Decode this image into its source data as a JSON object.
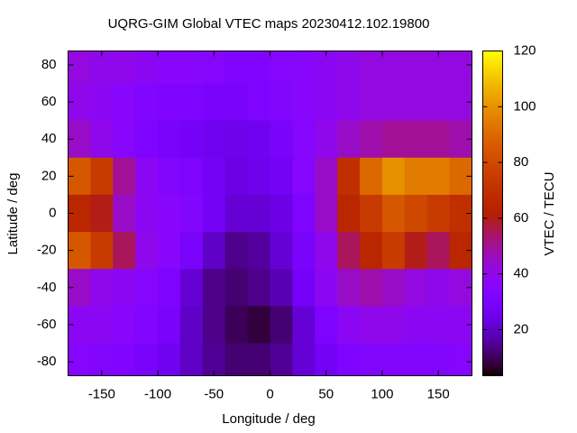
{
  "chart_data": {
    "type": "heatmap",
    "title": "UQRG-GIM Global VTEC maps 20230412.102.19800",
    "xlabel": "Longitude / deg",
    "ylabel": "Latitude / deg",
    "cblabel": "VTEC / TECU",
    "colormap": "gnuplot",
    "xlim": [
      -180,
      180
    ],
    "ylim": [
      -87.5,
      87.5
    ],
    "xticks": [
      -150,
      -100,
      -50,
      0,
      50,
      100,
      150
    ],
    "yticks": [
      -80,
      -60,
      -40,
      -20,
      0,
      20,
      40,
      60,
      80
    ],
    "cblim": [
      3.5,
      120
    ],
    "cbticks": [
      20,
      40,
      60,
      80,
      100,
      120
    ],
    "x": [
      -170,
      -150,
      -130,
      -110,
      -90,
      -70,
      -50,
      -30,
      -10,
      10,
      30,
      50,
      70,
      90,
      110,
      130,
      150,
      170
    ],
    "y": [
      80,
      60,
      40,
      20,
      0,
      -20,
      -40,
      -60,
      -80
    ],
    "z": [
      [
        42,
        40,
        40,
        38,
        36,
        36,
        35,
        33,
        33,
        35,
        36,
        38,
        40,
        42,
        42,
        42,
        42,
        42
      ],
      [
        40,
        38,
        36,
        34,
        32,
        32,
        30,
        30,
        32,
        34,
        36,
        38,
        40,
        42,
        42,
        42,
        42,
        42
      ],
      [
        45,
        40,
        36,
        32,
        30,
        28,
        26,
        25,
        26,
        30,
        35,
        40,
        45,
        48,
        50,
        50,
        50,
        48
      ],
      [
        85,
        75,
        50,
        38,
        34,
        32,
        28,
        24,
        25,
        28,
        35,
        45,
        70,
        90,
        100,
        95,
        95,
        90
      ],
      [
        65,
        60,
        45,
        38,
        36,
        34,
        28,
        22,
        22,
        24,
        32,
        45,
        65,
        75,
        85,
        80,
        75,
        70
      ],
      [
        85,
        75,
        55,
        40,
        36,
        30,
        20,
        14,
        16,
        22,
        30,
        40,
        55,
        65,
        75,
        60,
        55,
        65
      ],
      [
        45,
        40,
        38,
        35,
        32,
        22,
        14,
        12,
        14,
        18,
        28,
        38,
        45,
        48,
        45,
        42,
        40,
        42
      ],
      [
        38,
        38,
        36,
        34,
        30,
        20,
        14,
        10,
        8,
        12,
        22,
        32,
        38,
        40,
        40,
        38,
        38,
        38
      ],
      [
        35,
        34,
        33,
        30,
        26,
        20,
        15,
        12,
        12,
        15,
        22,
        28,
        32,
        34,
        34,
        34,
        34,
        35
      ]
    ]
  }
}
